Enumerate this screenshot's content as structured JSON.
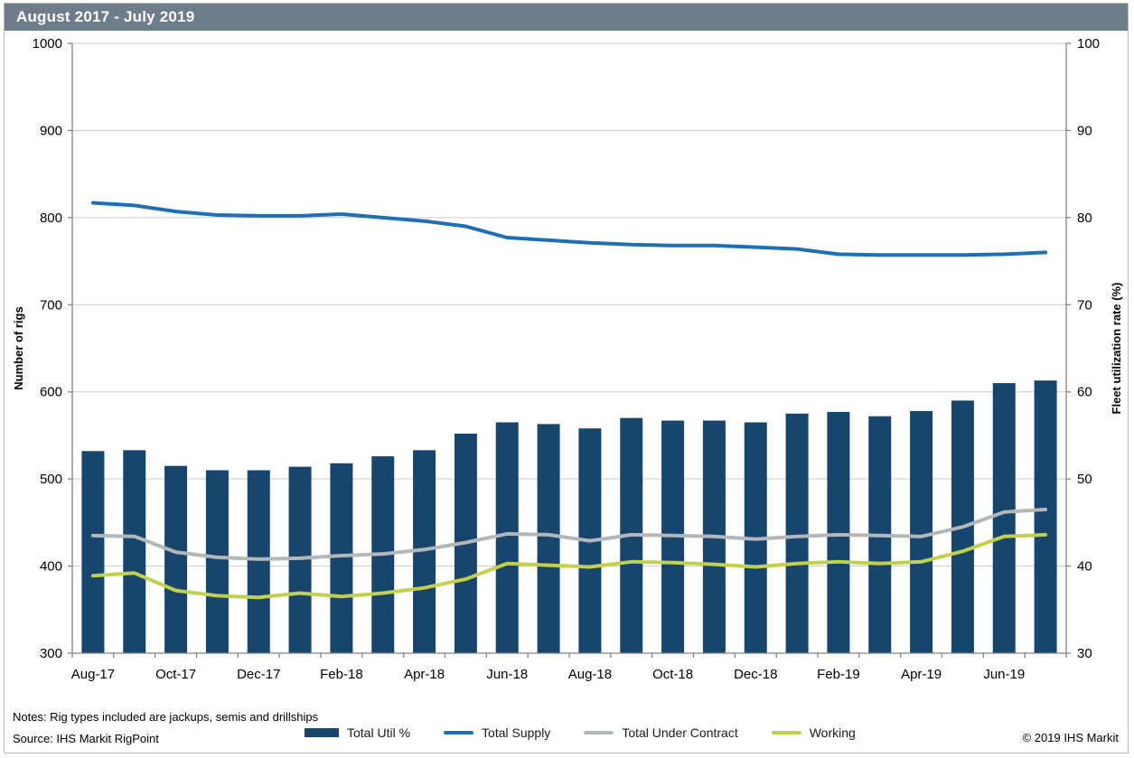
{
  "title_bar": {
    "text": "August 2017 - July 2019",
    "bg": "#6f7d8b",
    "text_color": "#ffffff"
  },
  "notes": {
    "line1": "Notes: Rig types included are jackups, semis and drillships",
    "line2": "Source: IHS Markit RigPoint"
  },
  "copyright": "© 2019 IHS Markit",
  "colors": {
    "bar": "#17456e",
    "supply": "#1e6fb4",
    "contract": "#b2b7ba",
    "working": "#c2d04e",
    "grid": "#c7cacc",
    "axis": "#7f8488",
    "tick_text": "#000000"
  },
  "legend": [
    {
      "label": "Total Util %",
      "type": "bar",
      "color_key": "bar"
    },
    {
      "label": "Total Supply",
      "type": "line",
      "color_key": "supply"
    },
    {
      "label": "Total Under Contract",
      "type": "line",
      "color_key": "contract"
    },
    {
      "label": "Working",
      "type": "line",
      "color_key": "working"
    }
  ],
  "chart_data": {
    "type": "combo",
    "categories": [
      "Aug-17",
      "Sep-17",
      "Oct-17",
      "Nov-17",
      "Dec-17",
      "Jan-18",
      "Feb-18",
      "Mar-18",
      "Apr-18",
      "May-18",
      "Jun-18",
      "Jul-18",
      "Aug-18",
      "Sep-18",
      "Oct-18",
      "Nov-18",
      "Dec-18",
      "Jan-19",
      "Feb-19",
      "Mar-19",
      "Apr-19",
      "May-19",
      "Jun-19",
      "Jul-19"
    ],
    "x_label_every": 2,
    "x_tick_labels": [
      "Aug-17",
      "Oct-17",
      "Dec-17",
      "Feb-18",
      "Apr-18",
      "Jun-18",
      "Aug-18",
      "Oct-18",
      "Dec-18",
      "Feb-19",
      "Apr-19",
      "Jun-19"
    ],
    "left_axis": {
      "label": "Number of rigs",
      "min": 300,
      "max": 1000,
      "step": 100
    },
    "right_axis": {
      "label": "Fleet utilization rate (%)",
      "min": 30,
      "max": 100,
      "step": 10
    },
    "grid": true,
    "legend_position": "bottom",
    "series": [
      {
        "name": "Total Util %",
        "type": "bar",
        "axis": "right",
        "color_key": "bar",
        "values": [
          53.2,
          53.3,
          51.5,
          51.0,
          51.0,
          51.4,
          51.8,
          52.6,
          53.3,
          55.2,
          56.5,
          56.3,
          55.8,
          57.0,
          56.7,
          56.7,
          56.5,
          57.5,
          57.7,
          57.2,
          57.8,
          59.0,
          61.0,
          61.3
        ]
      },
      {
        "name": "Total Supply",
        "type": "line",
        "axis": "left",
        "color_key": "supply",
        "values": [
          817,
          814,
          807,
          803,
          802,
          802,
          804,
          800,
          796,
          790,
          777,
          774,
          771,
          769,
          768,
          768,
          766,
          764,
          758,
          757,
          757,
          757,
          758,
          760
        ]
      },
      {
        "name": "Total Under Contract",
        "type": "line",
        "axis": "left",
        "color_key": "contract",
        "values": [
          435,
          434,
          416,
          410,
          408,
          409,
          412,
          414,
          419,
          427,
          437,
          436,
          429,
          436,
          435,
          434,
          431,
          434,
          436,
          435,
          434,
          445,
          462,
          465
        ]
      },
      {
        "name": "Working",
        "type": "line",
        "axis": "left",
        "color_key": "working",
        "values": [
          389,
          392,
          372,
          366,
          364,
          369,
          365,
          369,
          375,
          385,
          403,
          401,
          399,
          405,
          404,
          402,
          399,
          403,
          405,
          403,
          405,
          417,
          434,
          436
        ]
      }
    ]
  }
}
